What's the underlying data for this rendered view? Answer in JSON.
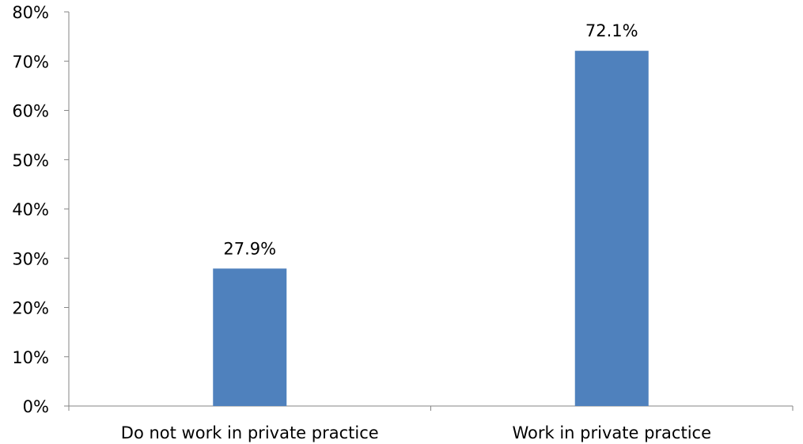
{
  "chart_data": {
    "type": "bar",
    "categories": [
      "Do not work in private practice",
      "Work in private practice"
    ],
    "series": [
      {
        "values": [
          27.9,
          72.1
        ],
        "color": "#4F81BD"
      }
    ],
    "data_labels": [
      "27.9%",
      "72.1%"
    ],
    "y_ticks": [
      "0%",
      "10%",
      "20%",
      "30%",
      "40%",
      "50%",
      "60%",
      "70%",
      "80%"
    ],
    "ylim": [
      0,
      80
    ],
    "y_unit": "%",
    "grid": false,
    "legend": "none",
    "title": "",
    "xlabel": "",
    "ylabel": ""
  }
}
